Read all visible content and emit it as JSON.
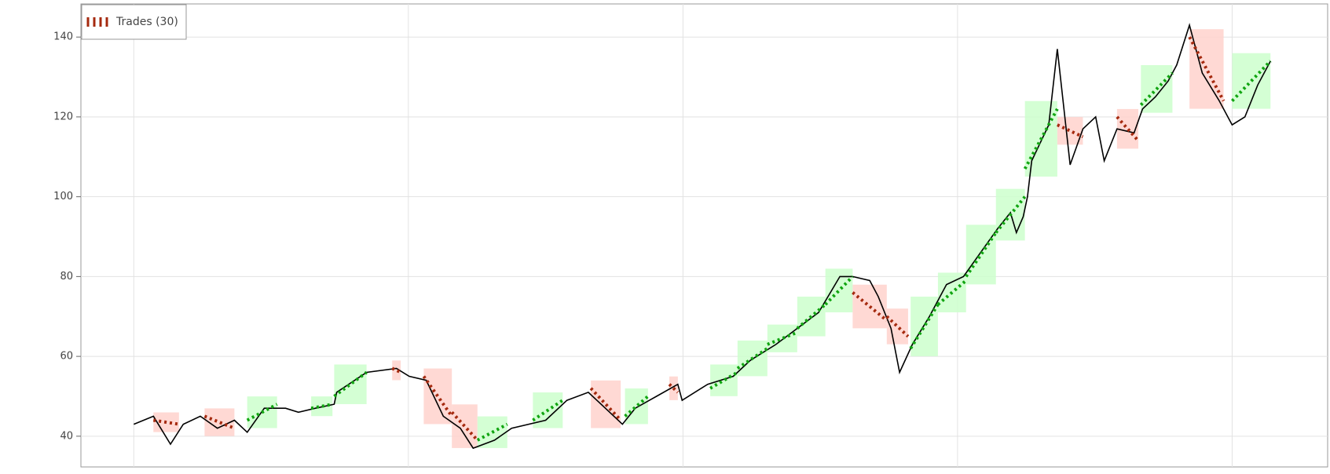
{
  "chart_data": {
    "type": "line",
    "legend": "Trades (30)",
    "price_color": "#000000",
    "win_color": "#11a511",
    "win_fill": "#ccffcc",
    "loss_color": "#a52a0f",
    "loss_fill": "#ffd2cc",
    "grid": true,
    "xlim": [
      -62,
      1400
    ],
    "xticks": [
      0,
      322,
      644,
      966,
      1288
    ],
    "ylim": [
      32.3,
      148.3
    ],
    "yticks": [
      40,
      60,
      80,
      100,
      120,
      140
    ],
    "x": [
      0,
      23,
      43,
      58,
      78,
      98,
      118,
      133,
      153,
      178,
      193,
      213,
      235,
      238,
      273,
      308,
      323,
      343,
      363,
      383,
      398,
      423,
      443,
      483,
      508,
      533,
      553,
      573,
      588,
      613,
      638,
      643,
      673,
      703,
      723,
      753,
      778,
      803,
      828,
      843,
      863,
      873,
      888,
      898,
      913,
      933,
      953,
      973,
      993,
      1013,
      1028,
      1035,
      1043,
      1048,
      1053,
      1073,
      1083,
      1098,
      1113,
      1128,
      1138,
      1153,
      1173,
      1183,
      1198,
      1213,
      1223,
      1238,
      1253,
      1273,
      1288,
      1303,
      1318,
      1333
    ],
    "values": [
      43,
      45,
      38,
      43,
      45,
      42,
      44,
      41,
      47,
      47,
      46,
      47,
      48,
      51,
      56,
      57,
      55,
      54,
      45,
      42,
      37,
      39,
      42,
      44,
      49,
      51,
      47,
      43,
      47,
      50,
      53,
      49,
      53,
      55,
      59,
      63,
      67,
      71,
      80,
      80,
      79,
      75,
      67,
      56,
      63,
      70,
      78,
      80,
      86,
      92,
      96,
      91,
      95,
      100,
      109,
      118,
      137,
      108,
      117,
      120,
      109,
      117,
      116,
      122,
      125,
      129,
      133,
      143,
      131,
      124,
      118,
      120,
      128,
      134
    ],
    "trades": [
      {
        "entry_x": 23,
        "exit_x": 53,
        "entry": 44,
        "exit": 43,
        "win": false
      },
      {
        "entry_x": 83,
        "exit_x": 118,
        "entry": 45,
        "exit": 42,
        "win": false
      },
      {
        "entry_x": 133,
        "exit_x": 168,
        "entry": 44,
        "exit": 48,
        "win": true
      },
      {
        "entry_x": 208,
        "exit_x": 233,
        "entry": 47,
        "exit": 48,
        "win": true
      },
      {
        "entry_x": 235,
        "exit_x": 273,
        "entry": 50,
        "exit": 56,
        "win": true
      },
      {
        "entry_x": 303,
        "exit_x": 313,
        "entry": 57,
        "exit": 56,
        "win": false
      },
      {
        "entry_x": 340,
        "exit_x": 373,
        "entry": 55,
        "exit": 45,
        "win": false
      },
      {
        "entry_x": 373,
        "exit_x": 403,
        "entry": 46,
        "exit": 39,
        "win": false
      },
      {
        "entry_x": 403,
        "exit_x": 438,
        "entry": 39,
        "exit": 43,
        "win": true
      },
      {
        "entry_x": 468,
        "exit_x": 503,
        "entry": 44,
        "exit": 49,
        "win": true
      },
      {
        "entry_x": 536,
        "exit_x": 571,
        "entry": 52,
        "exit": 44,
        "win": false
      },
      {
        "entry_x": 576,
        "exit_x": 603,
        "entry": 45,
        "exit": 50,
        "win": true
      },
      {
        "entry_x": 628,
        "exit_x": 638,
        "entry": 53,
        "exit": 51,
        "win": false
      },
      {
        "entry_x": 676,
        "exit_x": 708,
        "entry": 52,
        "exit": 56,
        "win": true
      },
      {
        "entry_x": 708,
        "exit_x": 743,
        "entry": 57,
        "exit": 62,
        "win": true
      },
      {
        "entry_x": 743,
        "exit_x": 778,
        "entry": 63,
        "exit": 66,
        "win": true
      },
      {
        "entry_x": 778,
        "exit_x": 811,
        "entry": 67,
        "exit": 73,
        "win": true
      },
      {
        "entry_x": 811,
        "exit_x": 843,
        "entry": 73,
        "exit": 80,
        "win": true
      },
      {
        "entry_x": 843,
        "exit_x": 883,
        "entry": 76,
        "exit": 69,
        "win": false
      },
      {
        "entry_x": 883,
        "exit_x": 908,
        "entry": 70,
        "exit": 65,
        "win": false
      },
      {
        "entry_x": 911,
        "exit_x": 943,
        "entry": 62,
        "exit": 73,
        "win": true
      },
      {
        "entry_x": 943,
        "exit_x": 976,
        "entry": 73,
        "exit": 79,
        "win": true
      },
      {
        "entry_x": 976,
        "exit_x": 1011,
        "entry": 80,
        "exit": 91,
        "win": true
      },
      {
        "entry_x": 1011,
        "exit_x": 1045,
        "entry": 91,
        "exit": 100,
        "win": true
      },
      {
        "entry_x": 1045,
        "exit_x": 1083,
        "entry": 107,
        "exit": 122,
        "win": true
      },
      {
        "entry_x": 1083,
        "exit_x": 1113,
        "entry": 118,
        "exit": 115,
        "win": false
      },
      {
        "entry_x": 1153,
        "exit_x": 1178,
        "entry": 120,
        "exit": 114,
        "win": false
      },
      {
        "entry_x": 1181,
        "exit_x": 1218,
        "entry": 123,
        "exit": 131,
        "win": true
      },
      {
        "entry_x": 1238,
        "exit_x": 1278,
        "entry": 140,
        "exit": 124,
        "win": false
      },
      {
        "entry_x": 1288,
        "exit_x": 1333,
        "entry": 124,
        "exit": 134,
        "win": true
      }
    ]
  }
}
